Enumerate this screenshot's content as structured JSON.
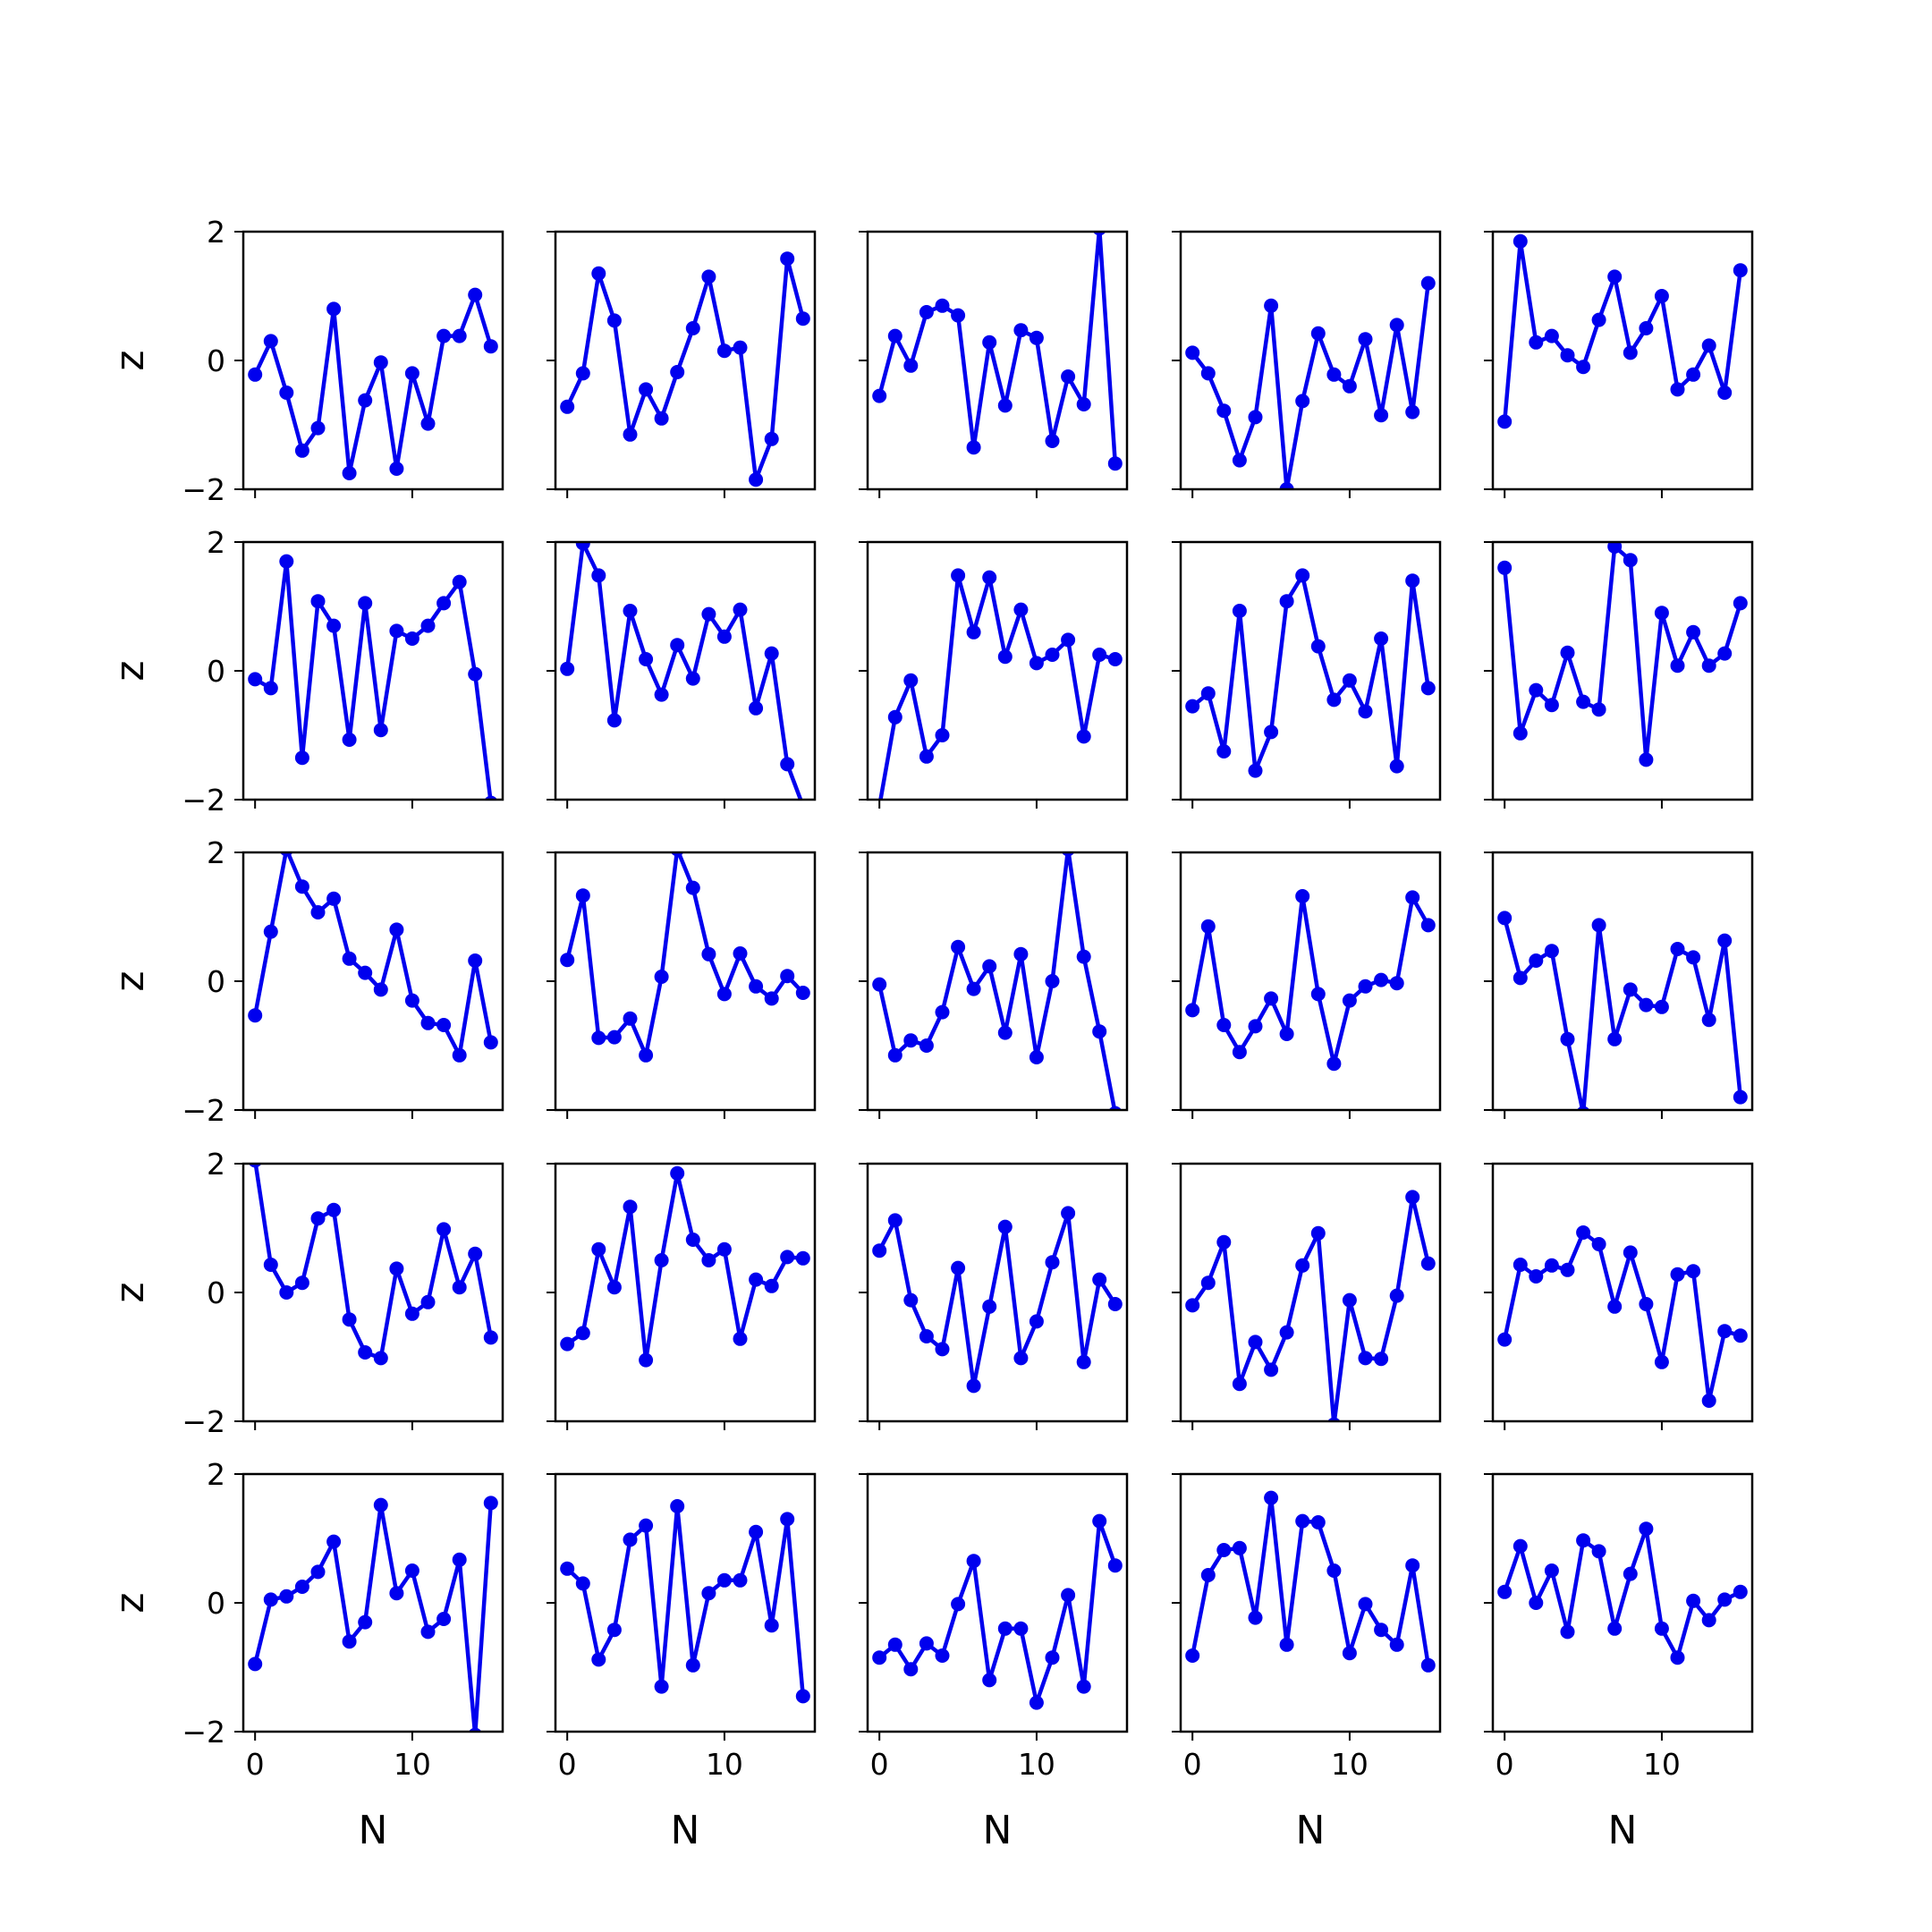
{
  "chart_data": {
    "type": "line",
    "layout": "5x5 grid of small multiples",
    "shared_x": true,
    "shared_y": true,
    "xlabel": "N",
    "ylabel": "z",
    "xlim": [
      -0.75,
      15.75
    ],
    "ylim": [
      -2,
      2
    ],
    "xticks": [
      0,
      10
    ],
    "xtick_labels": [
      "0",
      "10"
    ],
    "yticks": [
      -2,
      0,
      2
    ],
    "ytick_labels": [
      "−2",
      "0",
      "2"
    ],
    "x": [
      0,
      1,
      2,
      3,
      4,
      5,
      6,
      7,
      8,
      9,
      10,
      11,
      12,
      13,
      14,
      15
    ],
    "style": {
      "color": "#0000ee",
      "marker": "circle",
      "line": "solid"
    },
    "grid": false,
    "legend": "none",
    "panels": [
      {
        "row": 1,
        "col": 1,
        "values": [
          -0.22,
          0.3,
          -0.5,
          -1.4,
          -1.05,
          0.8,
          -1.75,
          -0.62,
          -0.03,
          -1.68,
          -0.2,
          -0.98,
          0.38,
          0.38,
          1.02,
          0.22
        ]
      },
      {
        "row": 1,
        "col": 2,
        "values": [
          -0.72,
          -0.2,
          1.35,
          0.62,
          -1.15,
          -0.45,
          -0.9,
          -0.18,
          0.5,
          1.3,
          0.15,
          0.2,
          -1.85,
          -1.22,
          1.58,
          0.65
        ]
      },
      {
        "row": 1,
        "col": 3,
        "values": [
          -0.55,
          0.38,
          -0.08,
          0.75,
          0.85,
          0.7,
          -1.35,
          0.28,
          -0.7,
          0.47,
          0.35,
          -1.25,
          -0.25,
          -0.68,
          2.05,
          -1.6
        ]
      },
      {
        "row": 1,
        "col": 4,
        "values": [
          0.12,
          -0.2,
          -0.78,
          -1.55,
          -0.88,
          0.85,
          -2.0,
          -0.63,
          0.42,
          -0.22,
          -0.4,
          0.33,
          -0.85,
          0.55,
          -0.8,
          1.2
        ]
      },
      {
        "row": 1,
        "col": 5,
        "values": [
          -0.95,
          1.85,
          0.28,
          0.38,
          0.08,
          -0.1,
          0.63,
          1.3,
          0.12,
          0.5,
          1.0,
          -0.45,
          -0.22,
          0.23,
          -0.5,
          1.4
        ]
      },
      {
        "row": 2,
        "col": 1,
        "values": [
          -0.13,
          -0.27,
          1.7,
          -1.35,
          1.08,
          0.7,
          -1.07,
          1.05,
          -0.92,
          0.62,
          0.5,
          0.7,
          1.05,
          1.38,
          -0.05,
          -2.05
        ]
      },
      {
        "row": 2,
        "col": 2,
        "values": [
          0.03,
          1.98,
          1.48,
          -0.77,
          0.93,
          0.18,
          -0.37,
          0.4,
          -0.12,
          0.88,
          0.53,
          0.95,
          -0.58,
          0.27,
          -1.45,
          -2.1
        ]
      },
      {
        "row": 2,
        "col": 3,
        "values": [
          -2.1,
          -0.72,
          -0.15,
          -1.33,
          -1.0,
          1.48,
          0.6,
          1.45,
          0.22,
          0.95,
          0.12,
          0.25,
          0.48,
          -1.02,
          0.25,
          0.18
        ]
      },
      {
        "row": 2,
        "col": 4,
        "values": [
          -0.55,
          -0.35,
          -1.25,
          0.93,
          -1.55,
          -0.95,
          1.08,
          1.48,
          0.38,
          -0.45,
          -0.15,
          -0.63,
          0.5,
          -1.48,
          1.4,
          -0.27
        ]
      },
      {
        "row": 2,
        "col": 5,
        "values": [
          1.6,
          -0.97,
          -0.3,
          -0.53,
          0.28,
          -0.48,
          -0.6,
          1.93,
          1.72,
          -1.38,
          0.9,
          0.08,
          0.6,
          0.08,
          0.27,
          1.05
        ]
      },
      {
        "row": 3,
        "col": 1,
        "values": [
          -0.53,
          0.77,
          2.05,
          1.47,
          1.07,
          1.28,
          0.35,
          0.13,
          -0.13,
          0.8,
          -0.3,
          -0.65,
          -0.68,
          -1.15,
          0.32,
          -0.95
        ]
      },
      {
        "row": 3,
        "col": 2,
        "values": [
          0.33,
          1.33,
          -0.88,
          -0.87,
          -0.58,
          -1.15,
          0.07,
          2.05,
          1.45,
          0.42,
          -0.2,
          0.43,
          -0.08,
          -0.27,
          0.08,
          -0.18
        ]
      },
      {
        "row": 3,
        "col": 3,
        "values": [
          -0.05,
          -1.15,
          -0.92,
          -1.0,
          -0.48,
          0.53,
          -0.12,
          0.23,
          -0.8,
          0.42,
          -1.18,
          0.0,
          2.05,
          0.38,
          -0.78,
          -2.05
        ]
      },
      {
        "row": 3,
        "col": 4,
        "values": [
          -0.45,
          0.85,
          -0.68,
          -1.1,
          -0.7,
          -0.27,
          -0.82,
          1.32,
          -0.2,
          -1.28,
          -0.3,
          -0.08,
          0.02,
          -0.03,
          1.3,
          0.87
        ]
      },
      {
        "row": 3,
        "col": 5,
        "values": [
          0.98,
          0.05,
          0.32,
          0.47,
          -0.9,
          -2.05,
          0.87,
          -0.9,
          -0.13,
          -0.37,
          -0.4,
          0.5,
          0.37,
          -0.6,
          0.63,
          -1.8
        ]
      },
      {
        "row": 4,
        "col": 1,
        "values": [
          2.05,
          0.43,
          0.0,
          0.15,
          1.15,
          1.28,
          -0.42,
          -0.93,
          -1.02,
          0.37,
          -0.33,
          -0.15,
          0.98,
          0.08,
          0.6,
          -0.7
        ]
      },
      {
        "row": 4,
        "col": 2,
        "values": [
          -0.8,
          -0.63,
          0.67,
          0.08,
          1.33,
          -1.05,
          0.5,
          1.85,
          0.82,
          0.5,
          0.67,
          -0.72,
          0.2,
          0.1,
          0.55,
          0.53
        ]
      },
      {
        "row": 4,
        "col": 3,
        "values": [
          0.65,
          1.12,
          -0.12,
          -0.68,
          -0.88,
          0.38,
          -1.45,
          -0.22,
          1.02,
          -1.02,
          -0.45,
          0.47,
          1.23,
          -1.08,
          0.2,
          -0.18
        ]
      },
      {
        "row": 4,
        "col": 4,
        "values": [
          -0.2,
          0.15,
          0.78,
          -1.42,
          -0.77,
          -1.2,
          -0.62,
          0.42,
          0.92,
          -2.05,
          -0.12,
          -1.02,
          -1.03,
          -0.05,
          1.48,
          0.45
        ]
      },
      {
        "row": 4,
        "col": 5,
        "values": [
          -0.73,
          0.43,
          0.25,
          0.42,
          0.35,
          0.93,
          0.75,
          -0.22,
          0.62,
          -0.18,
          -1.08,
          0.28,
          0.33,
          -1.68,
          -0.6,
          -0.67
        ]
      },
      {
        "row": 5,
        "col": 1,
        "values": [
          -0.95,
          0.05,
          0.1,
          0.25,
          0.48,
          0.95,
          -0.6,
          -0.3,
          1.52,
          0.15,
          0.5,
          -0.45,
          -0.25,
          0.67,
          -2.05,
          1.55
        ]
      },
      {
        "row": 5,
        "col": 2,
        "values": [
          0.53,
          0.3,
          -0.88,
          -0.42,
          0.98,
          1.2,
          -1.3,
          1.5,
          -0.97,
          0.15,
          0.35,
          0.35,
          1.1,
          -0.35,
          1.3,
          -1.45
        ]
      },
      {
        "row": 5,
        "col": 3,
        "values": [
          -0.85,
          -0.65,
          -1.03,
          -0.63,
          -0.82,
          -0.02,
          0.65,
          -1.2,
          -0.4,
          -0.4,
          -1.55,
          -0.85,
          0.12,
          -1.3,
          1.27,
          0.58
        ]
      },
      {
        "row": 5,
        "col": 4,
        "values": [
          -0.82,
          0.43,
          0.82,
          0.85,
          -0.23,
          1.63,
          -0.65,
          1.27,
          1.25,
          0.5,
          -0.78,
          -0.02,
          -0.42,
          -0.65,
          0.58,
          -0.97
        ]
      },
      {
        "row": 5,
        "col": 5,
        "values": [
          0.17,
          0.88,
          0.0,
          0.5,
          -0.45,
          0.97,
          0.8,
          -0.4,
          0.45,
          1.15,
          -0.4,
          -0.85,
          0.03,
          -0.27,
          0.05,
          0.17
        ]
      }
    ]
  }
}
